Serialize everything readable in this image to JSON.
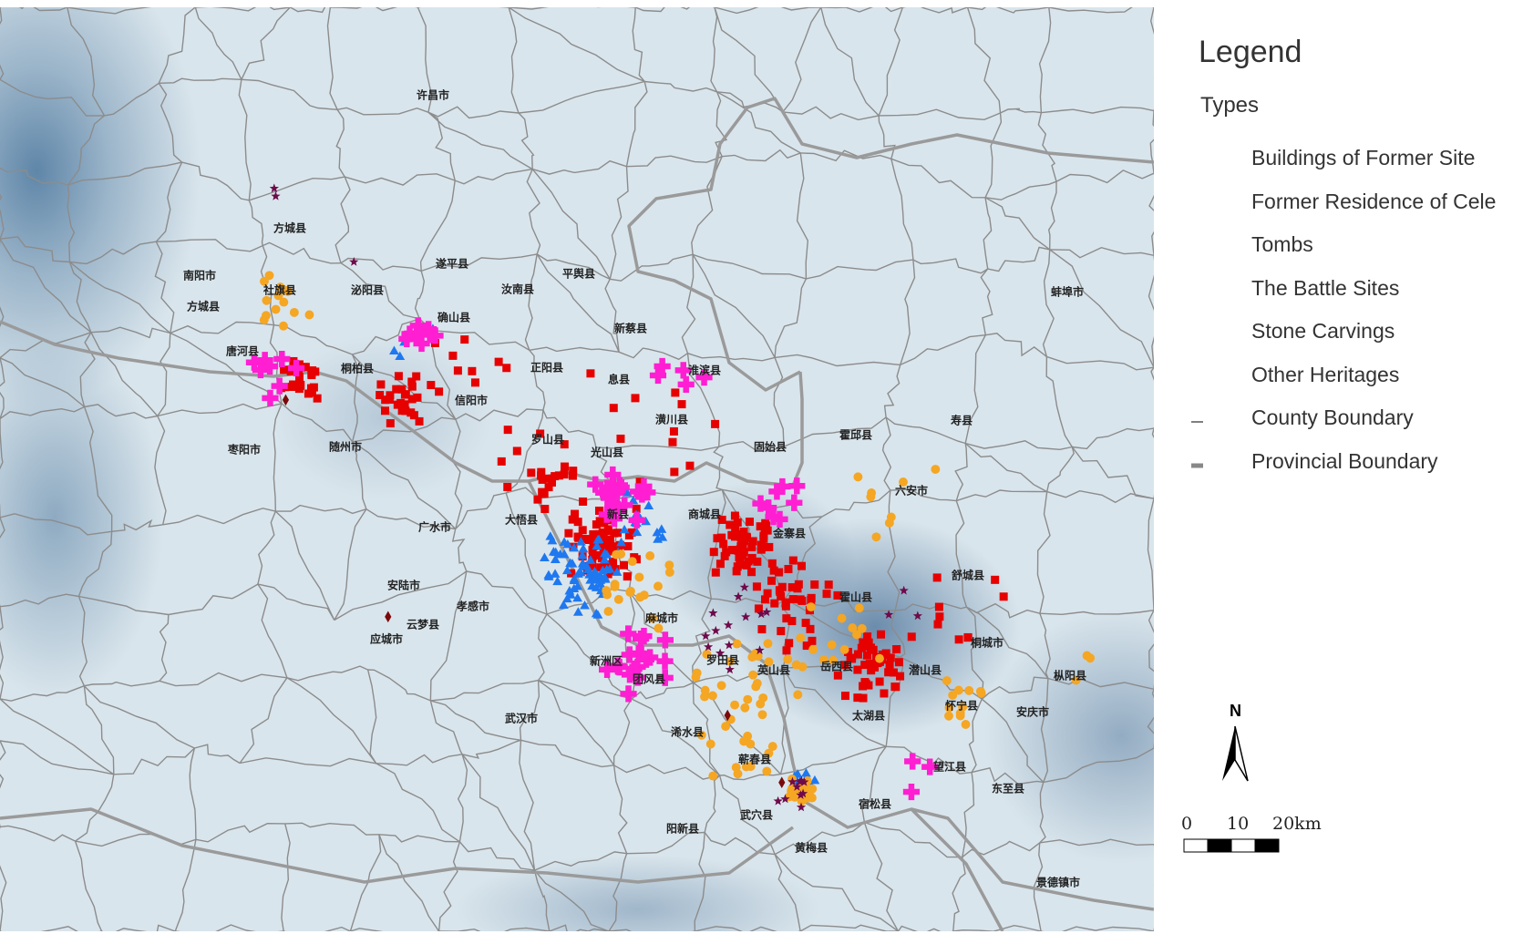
{
  "map": {
    "place_labels": [
      "许昌市",
      "方城县",
      "南阳市",
      "社旗县",
      "泌阳县",
      "遂平县",
      "汝南县",
      "平舆县",
      "方城县",
      "确山县",
      "新蔡县",
      "唐河县",
      "桐柏县",
      "正阳县",
      "息县",
      "淮滨县",
      "信阳市",
      "潢川县",
      "固始县",
      "霍邱县",
      "寿县",
      "蚌埠市",
      "枣阳市",
      "随州市",
      "罗山县",
      "光山县",
      "六安市",
      "广水市",
      "大悟县",
      "新县",
      "商城县",
      "金寨县",
      "舒城县",
      "安陆市",
      "霍山县",
      "孝感市",
      "麻城市",
      "云梦县",
      "应城市",
      "桐城市",
      "新洲区",
      "罗田县",
      "英山县",
      "岳西县",
      "潜山县",
      "枞阳县",
      "团风县",
      "怀宁县",
      "安庆市",
      "太湖县",
      "武汉市",
      "浠水县",
      "蕲春县",
      "望江县",
      "东至县",
      "宿松县",
      "武穴县",
      "阳新县",
      "黄梅县",
      "景德镇市"
    ],
    "colors": {
      "background": "#d9e5ec",
      "relief": "#5f86a8",
      "county_boundary": "#8c8c8c",
      "provincial_boundary": "#9a9a9a"
    }
  },
  "legend": {
    "title": "Legend",
    "subtitle": "Types",
    "items": [
      {
        "label": "Buildings of Former Site",
        "symbol": "square",
        "color": "#e60000"
      },
      {
        "label": "Former Residence of Cele",
        "symbol": "triangle",
        "color": "#1e78f0"
      },
      {
        "label": "Tombs",
        "symbol": "circle",
        "color": "#f5a623"
      },
      {
        "label": "The Battle Sites",
        "symbol": "cross",
        "color": "#ff1ed2"
      },
      {
        "label": "Stone Carvings",
        "symbol": "diamond",
        "color": "#7a0a0a"
      },
      {
        "label": "Other Heritages",
        "symbol": "star",
        "color": "#6e0a4a"
      },
      {
        "label": "County Boundary",
        "symbol": "thin-line",
        "color": "#555555"
      },
      {
        "label": "Provincial Boundary",
        "symbol": "thick-line",
        "color": "#888888"
      }
    ]
  },
  "north_arrow": {
    "label": "N"
  },
  "scale_bar": {
    "labels": [
      "0",
      "10",
      "20km"
    ]
  }
}
